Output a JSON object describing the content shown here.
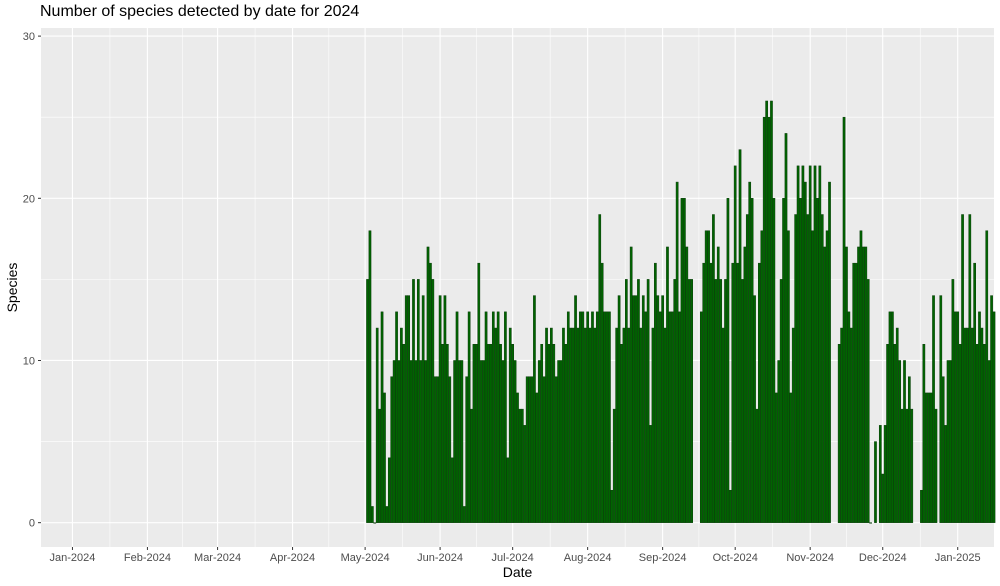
{
  "chart_data": {
    "type": "bar",
    "title": "Number of species detected by date for 2024",
    "xlabel": "Date",
    "ylabel": "Species",
    "x_range": [
      "2023-12-19",
      "2025-01-16"
    ],
    "ylim": [
      -1.5,
      30.5
    ],
    "y_ticks": [
      0,
      10,
      20,
      30
    ],
    "x_ticks": [
      {
        "date": "2024-01-01",
        "label": "Jan-2024"
      },
      {
        "date": "2024-02-01",
        "label": "Feb-2024"
      },
      {
        "date": "2024-03-01",
        "label": "Mar-2024"
      },
      {
        "date": "2024-04-01",
        "label": "Apr-2024"
      },
      {
        "date": "2024-05-01",
        "label": "May-2024"
      },
      {
        "date": "2024-06-01",
        "label": "Jun-2024"
      },
      {
        "date": "2024-07-01",
        "label": "Jul-2024"
      },
      {
        "date": "2024-08-01",
        "label": "Aug-2024"
      },
      {
        "date": "2024-09-01",
        "label": "Sep-2024"
      },
      {
        "date": "2024-10-01",
        "label": "Oct-2024"
      },
      {
        "date": "2024-11-01",
        "label": "Nov-2024"
      },
      {
        "date": "2024-12-01",
        "label": "Dec-2024"
      },
      {
        "date": "2025-01-01",
        "label": "Jan-2025"
      }
    ],
    "grid": true,
    "series": [
      {
        "start_date": "2024-05-02",
        "values": [
          15,
          18,
          1,
          0,
          12,
          7,
          13,
          8,
          1,
          4,
          9,
          10,
          13,
          10,
          12,
          11,
          14,
          14,
          10,
          15,
          10,
          15,
          10,
          14,
          10,
          17,
          16,
          15,
          9,
          9,
          14,
          11,
          14,
          11,
          9,
          4,
          10,
          13,
          10,
          10,
          1,
          9,
          13,
          7,
          11,
          11,
          16,
          10,
          10,
          13,
          11,
          11,
          13,
          12,
          13,
          11,
          10,
          13,
          4,
          12,
          11,
          10,
          8,
          7,
          7,
          6,
          9,
          9,
          9,
          14,
          8,
          10,
          11,
          9,
          12,
          11,
          12,
          11,
          9,
          10,
          10,
          12,
          11,
          13,
          12,
          12,
          14,
          12,
          13,
          13,
          12,
          13,
          12,
          13,
          12,
          13,
          19,
          16,
          13,
          13,
          13,
          2,
          7,
          12,
          14,
          11,
          12,
          15,
          12,
          17,
          14,
          14,
          15,
          12,
          14,
          13,
          15,
          6,
          12,
          16,
          14,
          13,
          14,
          12,
          17,
          13,
          13,
          15,
          21,
          13,
          20,
          20,
          17,
          15,
          15,
          null,
          null,
          null,
          13,
          16,
          18,
          18,
          16,
          19,
          15,
          17,
          15,
          12,
          15,
          20,
          2,
          16,
          22,
          16,
          23,
          15,
          17,
          19,
          21,
          20,
          14,
          7,
          16,
          18,
          25,
          26,
          25,
          26,
          20,
          8,
          10,
          15,
          20,
          24,
          18,
          8,
          12,
          19,
          22,
          20,
          22,
          21,
          19,
          22,
          18,
          22,
          20,
          22,
          19,
          17,
          18,
          21,
          null,
          null,
          null,
          11,
          12,
          25,
          17,
          13,
          12,
          16,
          16,
          17,
          18,
          17,
          17,
          15,
          0,
          null,
          5,
          null,
          6,
          3,
          6,
          11,
          13,
          13,
          11,
          12,
          10,
          7,
          10,
          7,
          9,
          7,
          null,
          null,
          null,
          2,
          11,
          8,
          8,
          8,
          14,
          7,
          null,
          14,
          9,
          6,
          10,
          10,
          15,
          13,
          13,
          11,
          19,
          12,
          12,
          19,
          12,
          16,
          11,
          13,
          12,
          11,
          18,
          10,
          14,
          13
        ],
        "color": "#006400"
      }
    ]
  }
}
